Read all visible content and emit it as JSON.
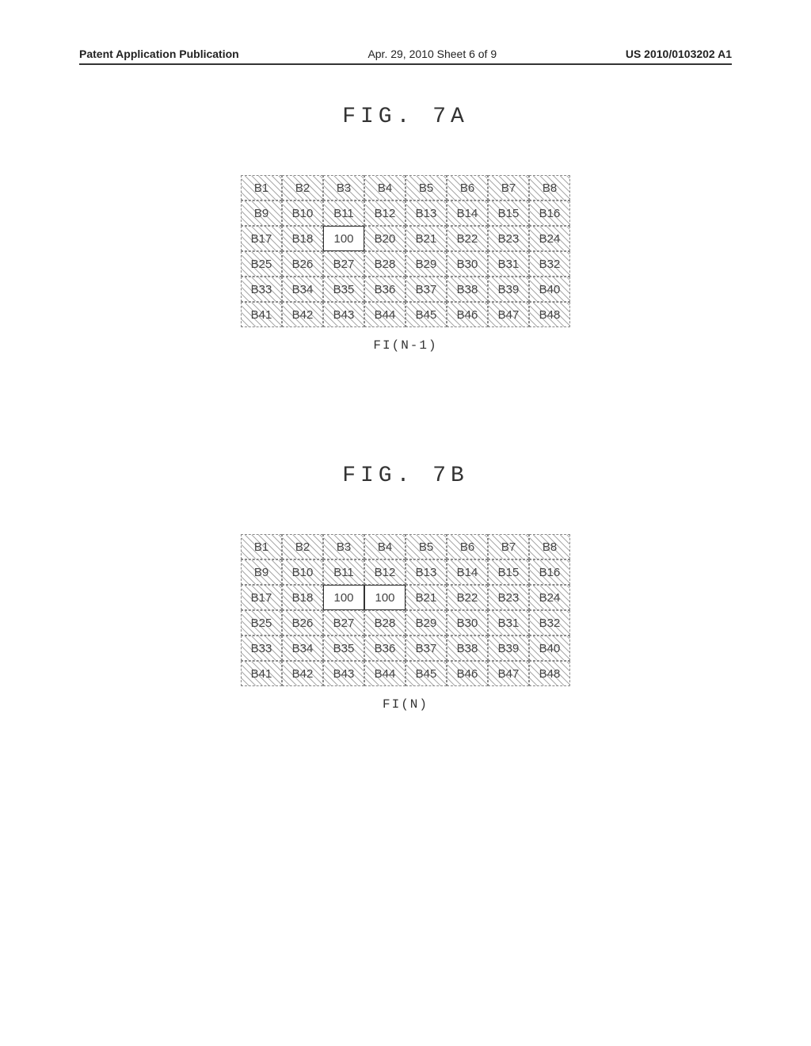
{
  "header": {
    "left": "Patent Application Publication",
    "center": "Apr. 29, 2010  Sheet 6 of 9",
    "right": "US 2010/0103202 A1"
  },
  "figures": [
    {
      "title": "FIG. 7A",
      "caption": "FI(N-1)",
      "grid": {
        "cols": 8,
        "rows": [
          [
            {
              "label": "B1",
              "hatched": true,
              "solid": false
            },
            {
              "label": "B2",
              "hatched": true,
              "solid": false
            },
            {
              "label": "B3",
              "hatched": true,
              "solid": false
            },
            {
              "label": "B4",
              "hatched": true,
              "solid": false
            },
            {
              "label": "B5",
              "hatched": true,
              "solid": false
            },
            {
              "label": "B6",
              "hatched": true,
              "solid": false
            },
            {
              "label": "B7",
              "hatched": true,
              "solid": false
            },
            {
              "label": "B8",
              "hatched": true,
              "solid": false
            }
          ],
          [
            {
              "label": "B9",
              "hatched": true,
              "solid": false
            },
            {
              "label": "B10",
              "hatched": true,
              "solid": false
            },
            {
              "label": "B11",
              "hatched": true,
              "solid": false
            },
            {
              "label": "B12",
              "hatched": true,
              "solid": false
            },
            {
              "label": "B13",
              "hatched": true,
              "solid": false
            },
            {
              "label": "B14",
              "hatched": true,
              "solid": false
            },
            {
              "label": "B15",
              "hatched": true,
              "solid": false
            },
            {
              "label": "B16",
              "hatched": true,
              "solid": false
            }
          ],
          [
            {
              "label": "B17",
              "hatched": true,
              "solid": false
            },
            {
              "label": "B18",
              "hatched": true,
              "solid": false
            },
            {
              "label": "100",
              "hatched": false,
              "solid": true
            },
            {
              "label": "B20",
              "hatched": true,
              "solid": false
            },
            {
              "label": "B21",
              "hatched": true,
              "solid": false
            },
            {
              "label": "B22",
              "hatched": true,
              "solid": false
            },
            {
              "label": "B23",
              "hatched": true,
              "solid": false
            },
            {
              "label": "B24",
              "hatched": true,
              "solid": false
            }
          ],
          [
            {
              "label": "B25",
              "hatched": true,
              "solid": false
            },
            {
              "label": "B26",
              "hatched": true,
              "solid": false
            },
            {
              "label": "B27",
              "hatched": true,
              "solid": false
            },
            {
              "label": "B28",
              "hatched": true,
              "solid": false
            },
            {
              "label": "B29",
              "hatched": true,
              "solid": false
            },
            {
              "label": "B30",
              "hatched": true,
              "solid": false
            },
            {
              "label": "B31",
              "hatched": true,
              "solid": false
            },
            {
              "label": "B32",
              "hatched": true,
              "solid": false
            }
          ],
          [
            {
              "label": "B33",
              "hatched": true,
              "solid": false
            },
            {
              "label": "B34",
              "hatched": true,
              "solid": false
            },
            {
              "label": "B35",
              "hatched": true,
              "solid": false
            },
            {
              "label": "B36",
              "hatched": true,
              "solid": false
            },
            {
              "label": "B37",
              "hatched": true,
              "solid": false
            },
            {
              "label": "B38",
              "hatched": true,
              "solid": false
            },
            {
              "label": "B39",
              "hatched": true,
              "solid": false
            },
            {
              "label": "B40",
              "hatched": true,
              "solid": false
            }
          ],
          [
            {
              "label": "B41",
              "hatched": true,
              "solid": false
            },
            {
              "label": "B42",
              "hatched": true,
              "solid": false
            },
            {
              "label": "B43",
              "hatched": true,
              "solid": false
            },
            {
              "label": "B44",
              "hatched": true,
              "solid": false
            },
            {
              "label": "B45",
              "hatched": true,
              "solid": false
            },
            {
              "label": "B46",
              "hatched": true,
              "solid": false
            },
            {
              "label": "B47",
              "hatched": true,
              "solid": false
            },
            {
              "label": "B48",
              "hatched": true,
              "solid": false
            }
          ]
        ]
      }
    },
    {
      "title": "FIG. 7B",
      "caption": "FI(N)",
      "grid": {
        "cols": 8,
        "rows": [
          [
            {
              "label": "B1",
              "hatched": true,
              "solid": false
            },
            {
              "label": "B2",
              "hatched": true,
              "solid": false
            },
            {
              "label": "B3",
              "hatched": true,
              "solid": false
            },
            {
              "label": "B4",
              "hatched": true,
              "solid": false
            },
            {
              "label": "B5",
              "hatched": true,
              "solid": false
            },
            {
              "label": "B6",
              "hatched": true,
              "solid": false
            },
            {
              "label": "B7",
              "hatched": true,
              "solid": false
            },
            {
              "label": "B8",
              "hatched": true,
              "solid": false
            }
          ],
          [
            {
              "label": "B9",
              "hatched": true,
              "solid": false
            },
            {
              "label": "B10",
              "hatched": true,
              "solid": false
            },
            {
              "label": "B11",
              "hatched": true,
              "solid": false
            },
            {
              "label": "B12",
              "hatched": true,
              "solid": false
            },
            {
              "label": "B13",
              "hatched": true,
              "solid": false
            },
            {
              "label": "B14",
              "hatched": true,
              "solid": false
            },
            {
              "label": "B15",
              "hatched": true,
              "solid": false
            },
            {
              "label": "B16",
              "hatched": true,
              "solid": false
            }
          ],
          [
            {
              "label": "B17",
              "hatched": true,
              "solid": false
            },
            {
              "label": "B18",
              "hatched": true,
              "solid": false
            },
            {
              "label": "100",
              "hatched": false,
              "solid": true
            },
            {
              "label": "100",
              "hatched": false,
              "solid": true
            },
            {
              "label": "B21",
              "hatched": true,
              "solid": false
            },
            {
              "label": "B22",
              "hatched": true,
              "solid": false
            },
            {
              "label": "B23",
              "hatched": true,
              "solid": false
            },
            {
              "label": "B24",
              "hatched": true,
              "solid": false
            }
          ],
          [
            {
              "label": "B25",
              "hatched": true,
              "solid": false
            },
            {
              "label": "B26",
              "hatched": true,
              "solid": false
            },
            {
              "label": "B27",
              "hatched": true,
              "solid": false
            },
            {
              "label": "B28",
              "hatched": true,
              "solid": false
            },
            {
              "label": "B29",
              "hatched": true,
              "solid": false
            },
            {
              "label": "B30",
              "hatched": true,
              "solid": false
            },
            {
              "label": "B31",
              "hatched": true,
              "solid": false
            },
            {
              "label": "B32",
              "hatched": true,
              "solid": false
            }
          ],
          [
            {
              "label": "B33",
              "hatched": true,
              "solid": false
            },
            {
              "label": "B34",
              "hatched": true,
              "solid": false
            },
            {
              "label": "B35",
              "hatched": true,
              "solid": false
            },
            {
              "label": "B36",
              "hatched": true,
              "solid": false
            },
            {
              "label": "B37",
              "hatched": true,
              "solid": false
            },
            {
              "label": "B38",
              "hatched": true,
              "solid": false
            },
            {
              "label": "B39",
              "hatched": true,
              "solid": false
            },
            {
              "label": "B40",
              "hatched": true,
              "solid": false
            }
          ],
          [
            {
              "label": "B41",
              "hatched": true,
              "solid": false
            },
            {
              "label": "B42",
              "hatched": true,
              "solid": false
            },
            {
              "label": "B43",
              "hatched": true,
              "solid": false
            },
            {
              "label": "B44",
              "hatched": true,
              "solid": false
            },
            {
              "label": "B45",
              "hatched": true,
              "solid": false
            },
            {
              "label": "B46",
              "hatched": true,
              "solid": false
            },
            {
              "label": "B47",
              "hatched": true,
              "solid": false
            },
            {
              "label": "B48",
              "hatched": true,
              "solid": false
            }
          ]
        ]
      }
    }
  ]
}
